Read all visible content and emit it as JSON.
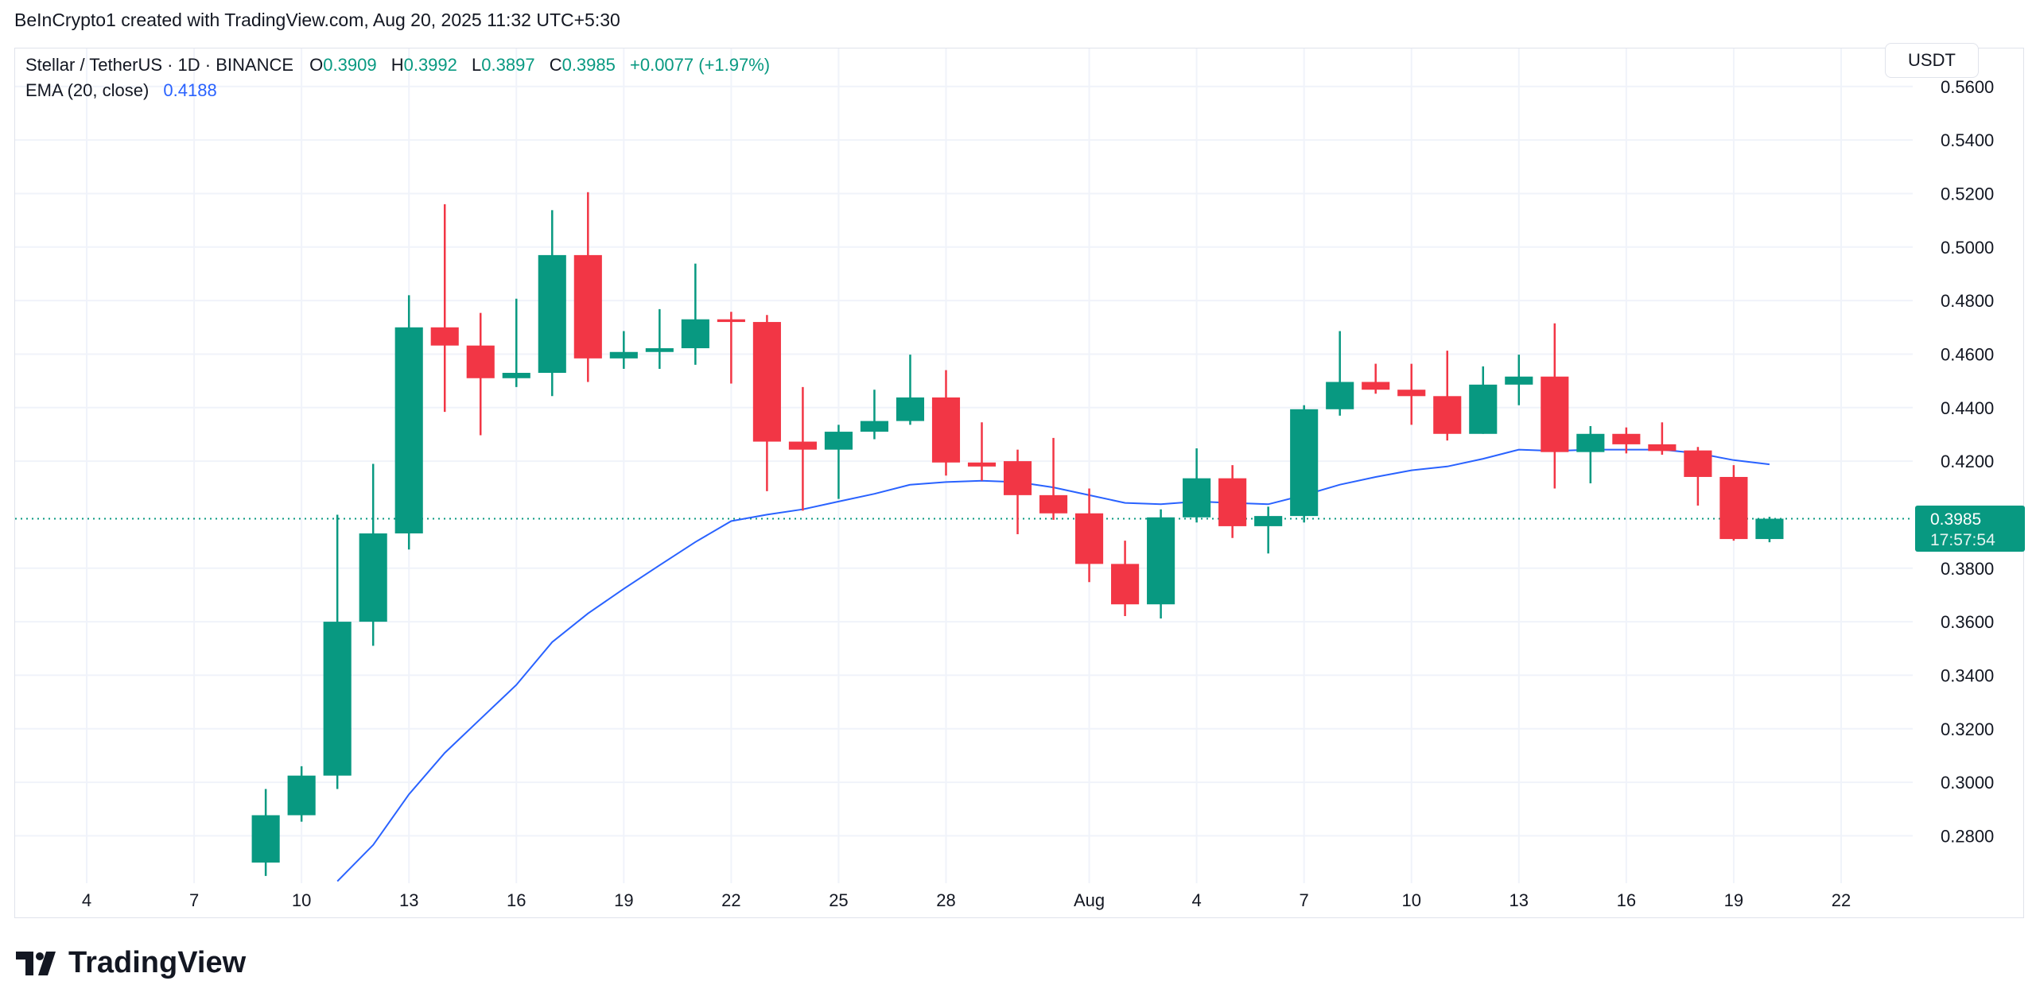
{
  "credit": "BeInCrypto1 created with TradingView.com, Aug 20, 2025 11:32 UTC+5:30",
  "legend": {
    "symbol": "Stellar / TetherUS · 1D · BINANCE",
    "o_label": "O",
    "o": "0.3909",
    "h_label": "H",
    "h": "0.3992",
    "l_label": "L",
    "l": "0.3897",
    "c_label": "C",
    "c": "0.3985",
    "change": "+0.0077 (+1.97%)",
    "ema_label": "EMA (20, close)",
    "ema_value": "0.4188"
  },
  "currency_button": "USDT",
  "last_price": {
    "price": "0.3985",
    "countdown": "17:57:54"
  },
  "branding": "TradingView",
  "colors": {
    "up": "#089981",
    "down": "#F23645",
    "ema": "#2962FF",
    "grid": "#F0F3FA"
  },
  "chart_data": {
    "type": "candlestick",
    "ylim": [
      0.2623,
      0.5742
    ],
    "y_ticks": [
      "0.5600",
      "0.5400",
      "0.5200",
      "0.5000",
      "0.4800",
      "0.4600",
      "0.4400",
      "0.4200",
      "0.3800",
      "0.3600",
      "0.3400",
      "0.3200",
      "0.3000",
      "0.2800"
    ],
    "x_range": [
      "2025-07-02",
      "2025-08-24"
    ],
    "x_ticks": [
      {
        "date": "2025-07-04",
        "label": "4"
      },
      {
        "date": "2025-07-07",
        "label": "7"
      },
      {
        "date": "2025-07-10",
        "label": "10"
      },
      {
        "date": "2025-07-13",
        "label": "13"
      },
      {
        "date": "2025-07-16",
        "label": "16"
      },
      {
        "date": "2025-07-19",
        "label": "19"
      },
      {
        "date": "2025-07-22",
        "label": "22"
      },
      {
        "date": "2025-07-25",
        "label": "25"
      },
      {
        "date": "2025-07-28",
        "label": "28"
      },
      {
        "date": "2025-08-01",
        "label": "Aug"
      },
      {
        "date": "2025-08-04",
        "label": "4"
      },
      {
        "date": "2025-08-07",
        "label": "7"
      },
      {
        "date": "2025-08-10",
        "label": "10"
      },
      {
        "date": "2025-08-13",
        "label": "13"
      },
      {
        "date": "2025-08-16",
        "label": "16"
      },
      {
        "date": "2025-08-19",
        "label": "19"
      },
      {
        "date": "2025-08-22",
        "label": "22"
      }
    ],
    "candles": [
      {
        "date": "2025-07-09",
        "o": 0.27,
        "h": 0.2975,
        "l": 0.265,
        "c": 0.2877
      },
      {
        "date": "2025-07-10",
        "o": 0.2877,
        "h": 0.306,
        "l": 0.2853,
        "c": 0.3025
      },
      {
        "date": "2025-07-11",
        "o": 0.3025,
        "h": 0.4,
        "l": 0.2975,
        "c": 0.36
      },
      {
        "date": "2025-07-12",
        "o": 0.36,
        "h": 0.419,
        "l": 0.351,
        "c": 0.393
      },
      {
        "date": "2025-07-13",
        "o": 0.393,
        "h": 0.482,
        "l": 0.387,
        "c": 0.47
      },
      {
        "date": "2025-07-14",
        "o": 0.47,
        "h": 0.516,
        "l": 0.4384,
        "c": 0.4632
      },
      {
        "date": "2025-07-15",
        "o": 0.4632,
        "h": 0.4754,
        "l": 0.4297,
        "c": 0.451
      },
      {
        "date": "2025-07-16",
        "o": 0.451,
        "h": 0.4807,
        "l": 0.4477,
        "c": 0.453
      },
      {
        "date": "2025-07-17",
        "o": 0.453,
        "h": 0.5138,
        "l": 0.4443,
        "c": 0.497
      },
      {
        "date": "2025-07-18",
        "o": 0.497,
        "h": 0.5205,
        "l": 0.4496,
        "c": 0.4584
      },
      {
        "date": "2025-07-19",
        "o": 0.4584,
        "h": 0.4686,
        "l": 0.4545,
        "c": 0.4608
      },
      {
        "date": "2025-07-20",
        "o": 0.4608,
        "h": 0.4768,
        "l": 0.4545,
        "c": 0.4622
      },
      {
        "date": "2025-07-21",
        "o": 0.4622,
        "h": 0.4938,
        "l": 0.456,
        "c": 0.473
      },
      {
        "date": "2025-07-22",
        "o": 0.473,
        "h": 0.4758,
        "l": 0.449,
        "c": 0.472
      },
      {
        "date": "2025-07-23",
        "o": 0.472,
        "h": 0.4746,
        "l": 0.4088,
        "c": 0.4273
      },
      {
        "date": "2025-07-24",
        "o": 0.4273,
        "h": 0.4477,
        "l": 0.4015,
        "c": 0.4243
      },
      {
        "date": "2025-07-25",
        "o": 0.4243,
        "h": 0.4336,
        "l": 0.4059,
        "c": 0.431
      },
      {
        "date": "2025-07-26",
        "o": 0.431,
        "h": 0.4467,
        "l": 0.4282,
        "c": 0.435
      },
      {
        "date": "2025-07-27",
        "o": 0.435,
        "h": 0.4598,
        "l": 0.4336,
        "c": 0.4438
      },
      {
        "date": "2025-07-28",
        "o": 0.4438,
        "h": 0.454,
        "l": 0.4146,
        "c": 0.4195
      },
      {
        "date": "2025-07-29",
        "o": 0.4195,
        "h": 0.4345,
        "l": 0.4127,
        "c": 0.418
      },
      {
        "date": "2025-07-30",
        "o": 0.42,
        "h": 0.4243,
        "l": 0.3927,
        "c": 0.4073
      },
      {
        "date": "2025-07-31",
        "o": 0.4073,
        "h": 0.4287,
        "l": 0.3981,
        "c": 0.4005
      },
      {
        "date": "2025-08-01",
        "o": 0.4005,
        "h": 0.4098,
        "l": 0.3748,
        "c": 0.3816
      },
      {
        "date": "2025-08-02",
        "o": 0.3816,
        "h": 0.3903,
        "l": 0.3621,
        "c": 0.3665
      },
      {
        "date": "2025-08-03",
        "o": 0.3665,
        "h": 0.402,
        "l": 0.3612,
        "c": 0.399
      },
      {
        "date": "2025-08-04",
        "o": 0.399,
        "h": 0.4248,
        "l": 0.3971,
        "c": 0.4136
      },
      {
        "date": "2025-08-05",
        "o": 0.4136,
        "h": 0.4185,
        "l": 0.3913,
        "c": 0.3957
      },
      {
        "date": "2025-08-06",
        "o": 0.3957,
        "h": 0.403,
        "l": 0.3855,
        "c": 0.3995
      },
      {
        "date": "2025-08-07",
        "o": 0.3995,
        "h": 0.4409,
        "l": 0.3971,
        "c": 0.4394
      },
      {
        "date": "2025-08-08",
        "o": 0.4394,
        "h": 0.4686,
        "l": 0.437,
        "c": 0.4496
      },
      {
        "date": "2025-08-09",
        "o": 0.4496,
        "h": 0.4564,
        "l": 0.4452,
        "c": 0.4467
      },
      {
        "date": "2025-08-10",
        "o": 0.4467,
        "h": 0.4564,
        "l": 0.4336,
        "c": 0.4443
      },
      {
        "date": "2025-08-11",
        "o": 0.4443,
        "h": 0.4613,
        "l": 0.4277,
        "c": 0.4302
      },
      {
        "date": "2025-08-12",
        "o": 0.4302,
        "h": 0.4554,
        "l": 0.4302,
        "c": 0.4486
      },
      {
        "date": "2025-08-13",
        "o": 0.4486,
        "h": 0.4598,
        "l": 0.4409,
        "c": 0.4516
      },
      {
        "date": "2025-08-14",
        "o": 0.4516,
        "h": 0.4715,
        "l": 0.4098,
        "c": 0.4234
      },
      {
        "date": "2025-08-15",
        "o": 0.4234,
        "h": 0.4331,
        "l": 0.4117,
        "c": 0.4302
      },
      {
        "date": "2025-08-16",
        "o": 0.4302,
        "h": 0.4326,
        "l": 0.4229,
        "c": 0.4263
      },
      {
        "date": "2025-08-17",
        "o": 0.4263,
        "h": 0.4345,
        "l": 0.4224,
        "c": 0.4238
      },
      {
        "date": "2025-08-18",
        "o": 0.424,
        "h": 0.4253,
        "l": 0.4034,
        "c": 0.4141
      },
      {
        "date": "2025-08-19",
        "o": 0.4141,
        "h": 0.4185,
        "l": 0.3903,
        "c": 0.3909
      },
      {
        "date": "2025-08-20",
        "o": 0.3909,
        "h": 0.3992,
        "l": 0.3897,
        "c": 0.3985
      }
    ],
    "ema": {
      "name": "EMA (20, close)",
      "start_date": "2025-07-11",
      "values": [
        0.263,
        0.2766,
        0.2955,
        0.311,
        0.3237,
        0.3364,
        0.3524,
        0.3631,
        0.3723,
        0.3811,
        0.3898,
        0.3976,
        0.4,
        0.402,
        0.4049,
        0.4078,
        0.4112,
        0.4122,
        0.4127,
        0.4122,
        0.4102,
        0.4073,
        0.4044,
        0.4039,
        0.4049,
        0.4044,
        0.4039,
        0.4073,
        0.4112,
        0.4141,
        0.4166,
        0.418,
        0.4209,
        0.4243,
        0.4238,
        0.4243,
        0.4243,
        0.4243,
        0.4229,
        0.4204,
        0.4188
      ]
    },
    "last_price_line": 0.3985,
    "grid": true
  }
}
